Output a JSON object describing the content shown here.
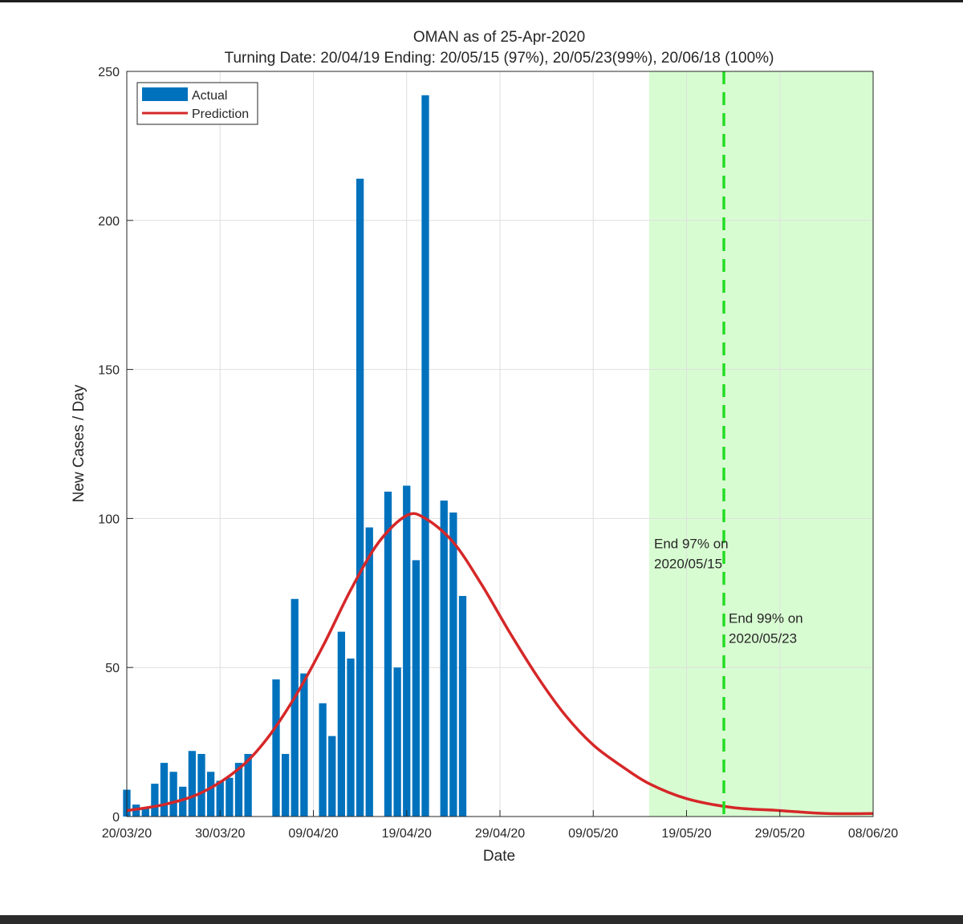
{
  "chart_data": {
    "type": "bar",
    "title": "OMAN as of 25-Apr-2020",
    "subtitle": "Turning Date: 20/04/19  Ending: 20/05/15 (97%), 20/05/23(99%), 20/06/18 (100%)",
    "xlabel": "Date",
    "ylabel": "New Cases / Day",
    "ylim": [
      0,
      250
    ],
    "yticks": [
      "0",
      "50",
      "100",
      "150",
      "200",
      "250"
    ],
    "x_start": "20/03/20",
    "x_end": "08/06/20",
    "xticks": [
      {
        "label": "20/03/20",
        "date": "2020-03-20"
      },
      {
        "label": "30/03/20",
        "date": "2020-03-30"
      },
      {
        "label": "09/04/20",
        "date": "2020-04-09"
      },
      {
        "label": "19/04/20",
        "date": "2020-04-19"
      },
      {
        "label": "29/04/20",
        "date": "2020-04-29"
      },
      {
        "label": "09/05/20",
        "date": "2020-05-09"
      },
      {
        "label": "19/05/20",
        "date": "2020-05-19"
      },
      {
        "label": "29/05/20",
        "date": "2020-05-29"
      },
      {
        "label": "08/06/20",
        "date": "2020-06-08"
      }
    ],
    "grid": true,
    "legend_position": "top-left",
    "series": [
      {
        "name": "Actual",
        "kind": "bar",
        "color": "#0072BD",
        "points": [
          {
            "date": "2020-03-20",
            "value": 9
          },
          {
            "date": "2020-03-21",
            "value": 4
          },
          {
            "date": "2020-03-22",
            "value": 3
          },
          {
            "date": "2020-03-23",
            "value": 11
          },
          {
            "date": "2020-03-24",
            "value": 18
          },
          {
            "date": "2020-03-25",
            "value": 15
          },
          {
            "date": "2020-03-26",
            "value": 10
          },
          {
            "date": "2020-03-27",
            "value": 22
          },
          {
            "date": "2020-03-28",
            "value": 21
          },
          {
            "date": "2020-03-29",
            "value": 15
          },
          {
            "date": "2020-03-30",
            "value": 12
          },
          {
            "date": "2020-03-31",
            "value": 13
          },
          {
            "date": "2020-04-01",
            "value": 18
          },
          {
            "date": "2020-04-02",
            "value": 21
          },
          {
            "date": "2020-04-05",
            "value": 46
          },
          {
            "date": "2020-04-06",
            "value": 21
          },
          {
            "date": "2020-04-07",
            "value": 73
          },
          {
            "date": "2020-04-08",
            "value": 48
          },
          {
            "date": "2020-04-10",
            "value": 38
          },
          {
            "date": "2020-04-11",
            "value": 27
          },
          {
            "date": "2020-04-12",
            "value": 62
          },
          {
            "date": "2020-04-13",
            "value": 53
          },
          {
            "date": "2020-04-14",
            "value": 214
          },
          {
            "date": "2020-04-15",
            "value": 97
          },
          {
            "date": "2020-04-17",
            "value": 109
          },
          {
            "date": "2020-04-18",
            "value": 50
          },
          {
            "date": "2020-04-19",
            "value": 111
          },
          {
            "date": "2020-04-20",
            "value": 86
          },
          {
            "date": "2020-04-21",
            "value": 242
          },
          {
            "date": "2020-04-23",
            "value": 106
          },
          {
            "date": "2020-04-24",
            "value": 102
          },
          {
            "date": "2020-04-25",
            "value": 74
          }
        ]
      },
      {
        "name": "Prediction",
        "kind": "line",
        "color": "#D62728",
        "points": [
          {
            "date": "2020-03-20",
            "value": 2
          },
          {
            "date": "2020-03-24",
            "value": 4
          },
          {
            "date": "2020-03-28",
            "value": 8
          },
          {
            "date": "2020-04-01",
            "value": 16
          },
          {
            "date": "2020-04-04",
            "value": 26
          },
          {
            "date": "2020-04-07",
            "value": 40
          },
          {
            "date": "2020-04-10",
            "value": 57
          },
          {
            "date": "2020-04-13",
            "value": 76
          },
          {
            "date": "2020-04-16",
            "value": 92
          },
          {
            "date": "2020-04-19",
            "value": 101
          },
          {
            "date": "2020-04-21",
            "value": 100
          },
          {
            "date": "2020-04-24",
            "value": 92
          },
          {
            "date": "2020-04-27",
            "value": 78
          },
          {
            "date": "2020-04-30",
            "value": 62
          },
          {
            "date": "2020-05-03",
            "value": 47
          },
          {
            "date": "2020-05-06",
            "value": 34
          },
          {
            "date": "2020-05-09",
            "value": 24
          },
          {
            "date": "2020-05-12",
            "value": 17
          },
          {
            "date": "2020-05-15",
            "value": 11
          },
          {
            "date": "2020-05-19",
            "value": 6
          },
          {
            "date": "2020-05-24",
            "value": 3
          },
          {
            "date": "2020-05-29",
            "value": 2
          },
          {
            "date": "2020-06-03",
            "value": 1
          },
          {
            "date": "2020-06-08",
            "value": 1
          }
        ]
      }
    ],
    "shaded_region": {
      "from": "2020-05-15",
      "to": "2020-06-08",
      "color": "#d8fcd2"
    },
    "vline": {
      "date": "2020-05-23",
      "color": "#22dd22",
      "style": "dashed"
    },
    "annotations": [
      {
        "lines": [
          "End 97% on",
          "2020/05/15"
        ],
        "date": "2020-05-15",
        "value": 90
      },
      {
        "lines": [
          "End 99% on",
          "2020/05/23"
        ],
        "date": "2020-05-23",
        "value": 65
      }
    ]
  }
}
